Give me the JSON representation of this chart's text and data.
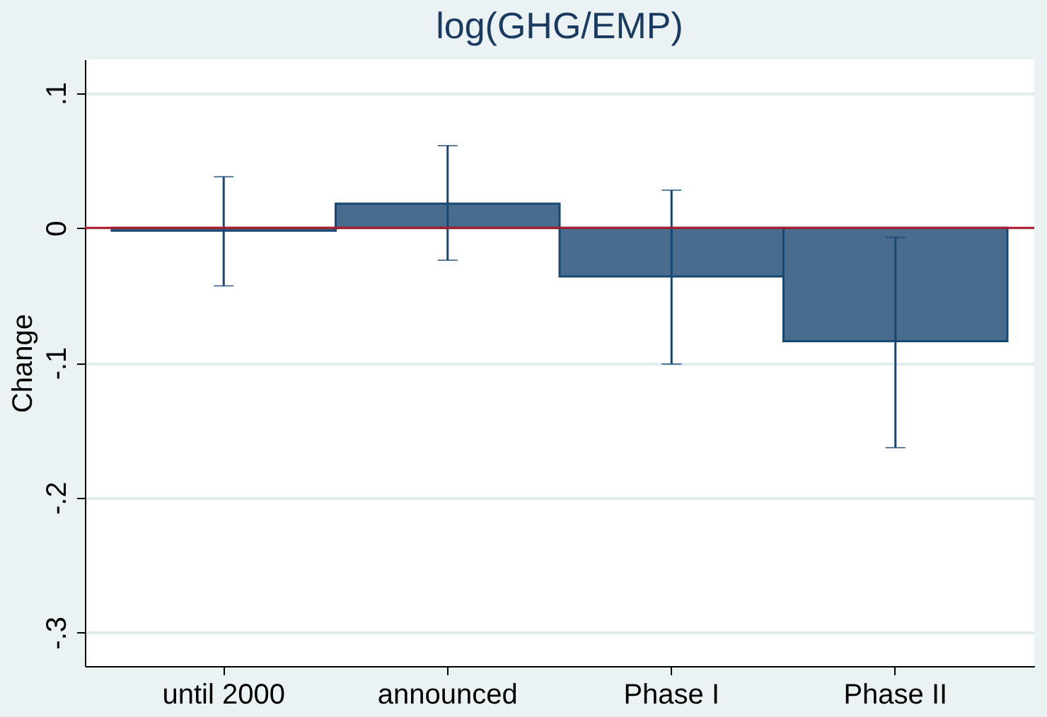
{
  "chart_data": {
    "type": "bar",
    "title": "log(GHG/EMP)",
    "ylabel": "Change",
    "categories": [
      "until 2000",
      "announced",
      "Phase I",
      "Phase II"
    ],
    "values": [
      -0.002,
      0.018,
      -0.036,
      -0.084
    ],
    "errors": [
      [
        -0.043,
        0.038
      ],
      [
        -0.024,
        0.061
      ],
      [
        -0.101,
        0.028
      ],
      [
        -0.163,
        -0.007
      ]
    ],
    "color": "#476c8e",
    "ylim": [
      -0.325,
      0.125
    ],
    "yticks": [
      {
        "value": -0.3,
        "label": "-.3"
      },
      {
        "value": -0.2,
        "label": "-.2"
      },
      {
        "value": -0.1,
        "label": "-.1"
      },
      0,
      {
        "value": 0.1,
        "label": ".1"
      }
    ],
    "grid": "y",
    "ref_lines": [
      {
        "axis": "y",
        "value": 0,
        "color": "#b2182b"
      }
    ]
  }
}
